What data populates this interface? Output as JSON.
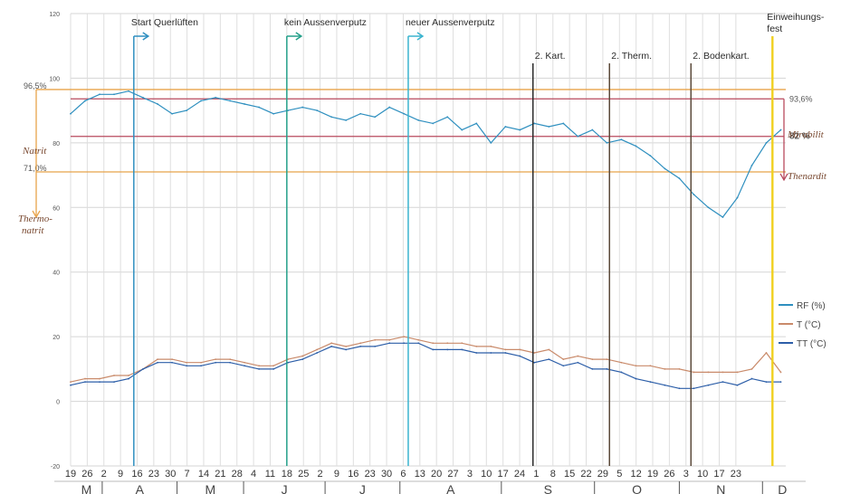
{
  "chart_data": {
    "type": "line",
    "title": "",
    "xlabel": "",
    "ylabel": "",
    "ylim": [
      -20,
      120
    ],
    "y_ticks": [
      -20,
      0,
      20,
      40,
      60,
      80,
      100,
      120
    ],
    "grid": true,
    "legend_position": "right",
    "x_unit": "week",
    "x_tick_labels": [
      "19",
      "26",
      "2",
      "9",
      "16",
      "23",
      "30",
      "7",
      "14",
      "21",
      "28",
      "4",
      "11",
      "18",
      "25",
      "2",
      "9",
      "16",
      "23",
      "30",
      "6",
      "13",
      "20",
      "27",
      "3",
      "10",
      "17",
      "24",
      "1",
      "8",
      "15",
      "22",
      "29",
      "5",
      "12",
      "19",
      "26",
      "3",
      "10",
      "17",
      "23"
    ],
    "months": [
      "M",
      "A",
      "M",
      "J",
      "J",
      "A",
      "S",
      "O",
      "N",
      "D"
    ],
    "month_bounds": [
      0,
      1.9,
      6.4,
      10.4,
      15.3,
      19.8,
      25.9,
      31.5,
      36.6,
      41.6,
      44
    ],
    "series": [
      {
        "name": "RF (%)",
        "color": "#2e8fbf",
        "values": [
          89,
          93,
          95,
          95,
          96,
          94,
          92,
          89,
          90,
          93,
          94,
          93,
          92,
          91,
          89,
          90,
          91,
          90,
          88,
          87,
          89,
          88,
          91,
          89,
          87,
          86,
          88,
          84,
          86,
          80,
          85,
          84,
          86,
          85,
          86,
          82,
          84,
          80,
          81,
          79,
          76,
          72,
          69,
          64,
          60,
          57,
          63,
          73,
          80,
          84
        ]
      },
      {
        "name": "T (°C)",
        "color": "#c98a6a",
        "values": [
          6,
          7,
          7,
          8,
          8,
          10,
          13,
          13,
          12,
          12,
          13,
          13,
          12,
          11,
          11,
          13,
          14,
          16,
          18,
          17,
          18,
          19,
          19,
          20,
          19,
          18,
          18,
          18,
          17,
          17,
          16,
          16,
          15,
          16,
          13,
          14,
          13,
          13,
          12,
          11,
          11,
          10,
          10,
          9,
          9,
          9,
          9,
          10,
          15,
          9
        ]
      },
      {
        "name": "TT (°C)",
        "color": "#2c5ea8",
        "values": [
          5,
          6,
          6,
          6,
          7,
          10,
          12,
          12,
          11,
          11,
          12,
          12,
          11,
          10,
          10,
          12,
          13,
          15,
          17,
          16,
          17,
          17,
          18,
          18,
          18,
          16,
          16,
          16,
          15,
          15,
          15,
          14,
          12,
          13,
          11,
          12,
          10,
          10,
          9,
          7,
          6,
          5,
          4,
          4,
          5,
          6,
          5,
          7,
          6,
          6
        ]
      }
    ],
    "threshold_lines": [
      {
        "label_left": "96,5%",
        "value": 96.5,
        "color": "#e8a34a",
        "side": "left"
      },
      {
        "label_left": "71,0%",
        "value": 71.0,
        "color": "#e8a34a",
        "side": "left"
      },
      {
        "label_right": "93,6%",
        "value": 93.6,
        "color": "#b84a5e",
        "side": "right"
      },
      {
        "label_right": "82 %",
        "value": 82.0,
        "color": "#b84a5e",
        "side": "right"
      }
    ],
    "phase_labels": {
      "natrit": "Natrit",
      "thermonatrit_1": "Thermo-",
      "thermonatrit_2": "natrit",
      "mirabilit": "Mirabilit",
      "thenardit": "Thenardit"
    },
    "events": [
      {
        "label": "Start Querlüften",
        "x": 3.8,
        "color": "#2f8fc0"
      },
      {
        "label": "kein Aussenverputz",
        "x": 13.0,
        "color": "#25a08a"
      },
      {
        "label": "neuer Aussenverputz",
        "x": 20.3,
        "color": "#3ab4cf"
      },
      {
        "label": "2. Kart.",
        "x": 27.8,
        "color": "#2a2a2a"
      },
      {
        "label": "2. Therm.",
        "x": 32.4,
        "color": "#5b4a3a"
      },
      {
        "label": "2. Bodenkart.",
        "x": 37.3,
        "color": "#5b4a3a"
      },
      {
        "label": "Einweihungs-",
        "label2": "fest",
        "x": 42.2,
        "color": "#f0d020"
      }
    ]
  }
}
